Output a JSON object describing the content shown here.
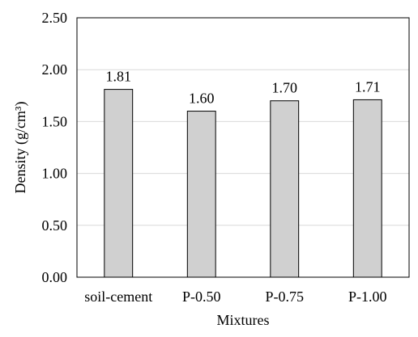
{
  "chart_data": {
    "type": "bar",
    "title": "",
    "xlabel": "Mixtures",
    "ylabel": "Density (g/cm³)",
    "categories": [
      "soil-cement",
      "P-0.50",
      "P-0.75",
      "P-1.00"
    ],
    "values": [
      1.81,
      1.6,
      1.7,
      1.71
    ],
    "data_labels": [
      "1.81",
      "1.60",
      "1.70",
      "1.71"
    ],
    "ylim": [
      0,
      2.5
    ],
    "yticks": [
      0,
      0.5,
      1.0,
      1.5,
      2.0,
      2.5
    ],
    "ytick_labels": [
      "0.00",
      "0.50",
      "1.00",
      "1.50",
      "2.00",
      "2.50"
    ],
    "grid": "horizontal",
    "legend": "none",
    "colors": {
      "bar_fill": "#d0d0d0",
      "bar_stroke": "#000000",
      "grid": "#d9d9d9",
      "frame": "#000000"
    }
  }
}
